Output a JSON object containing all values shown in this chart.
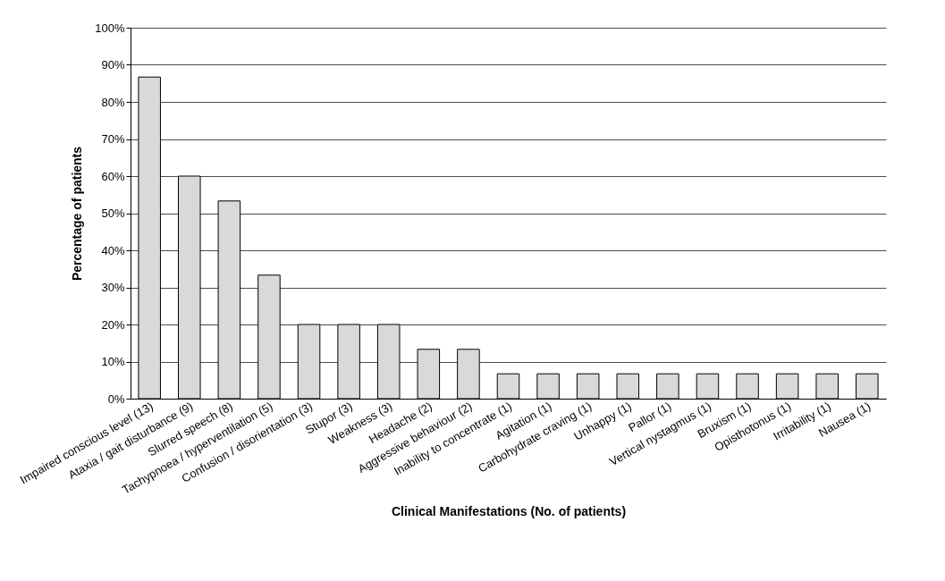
{
  "chart_data": {
    "type": "bar",
    "xlabel": "Clinical Manifestations (No. of patients)",
    "ylabel": "Percentage of patients",
    "categories": [
      "Impaired conscious level (13)",
      "Ataxia / gait disturbance (9)",
      "Slurred speech (8)",
      "Tachypnoea / hyperventilation (5)",
      "Confusion / disorientation (3)",
      "Stupor (3)",
      "Weakness (3)",
      "Headache (2)",
      "Aggressive behaviour (2)",
      "Inability to concentrate (1)",
      "Agitation (1)",
      "Carbohydrate craving (1)",
      "Unhappy (1)",
      "Pallor (1)",
      "Vertical nystagmus (1)",
      "Bruxism (1)",
      "Opisthotonus (1)",
      "Irritability (1)",
      "Nausea (1)"
    ],
    "values": [
      86.7,
      60,
      53.3,
      33.3,
      20,
      20,
      20,
      13.3,
      13.3,
      6.7,
      6.7,
      6.7,
      6.7,
      6.7,
      6.7,
      6.7,
      6.7,
      6.7,
      6.7
    ],
    "color": "#d9d9d9",
    "ylim": [
      0,
      100
    ],
    "yticks": [
      {
        "value": 0,
        "label": "0%"
      },
      {
        "value": 10,
        "label": "10%"
      },
      {
        "value": 20,
        "label": "20%"
      },
      {
        "value": 30,
        "label": "30%"
      },
      {
        "value": 40,
        "label": "40%"
      },
      {
        "value": 50,
        "label": "50%"
      },
      {
        "value": 60,
        "label": "60%"
      },
      {
        "value": 70,
        "label": "70%"
      },
      {
        "value": 80,
        "label": "80%"
      },
      {
        "value": 90,
        "label": "90%"
      },
      {
        "value": 100,
        "label": "100%"
      }
    ],
    "grid": "y"
  }
}
